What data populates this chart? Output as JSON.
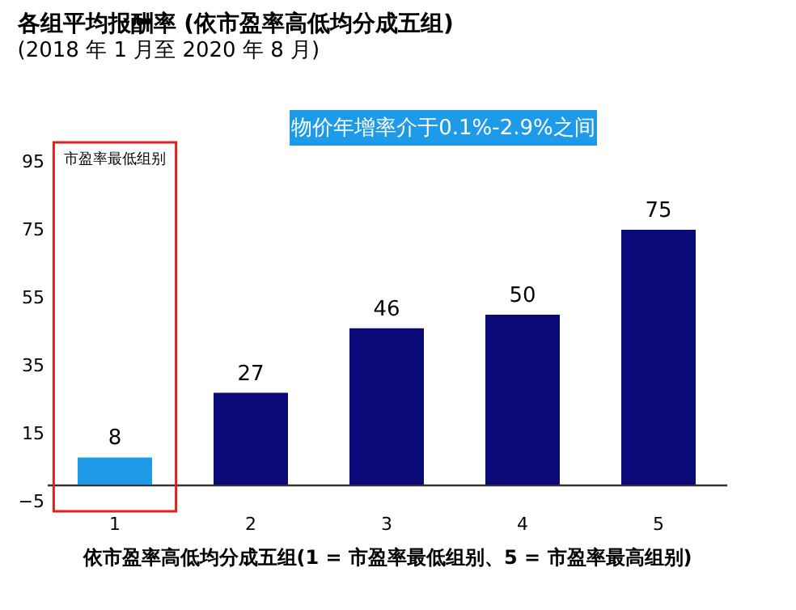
{
  "chart_data": {
    "type": "bar",
    "title": "各组平均报酬率 (依市盈率高低均分成五组)",
    "subtitle": "(2018 年 1 月至 2020 年 8 月)",
    "xlabel": "依市盈率高低均分成五组(1 = 市盈率最低组别、5 = 市盈率最高组别)",
    "categories": [
      "1",
      "2",
      "3",
      "4",
      "5"
    ],
    "values": [
      8,
      27,
      46,
      50,
      75
    ],
    "colors": [
      "#1e9be8",
      "#0a0a7a",
      "#0a0a7a",
      "#0a0a7a",
      "#0a0a7a"
    ],
    "ylim": [
      -5,
      95
    ],
    "yticks": [
      -5,
      15,
      35,
      55,
      75,
      95
    ],
    "grid": false,
    "data_labels": true,
    "annotations": [
      "市盈率最低组别",
      "物价年增率介于0.1%-2.9%之间"
    ]
  }
}
